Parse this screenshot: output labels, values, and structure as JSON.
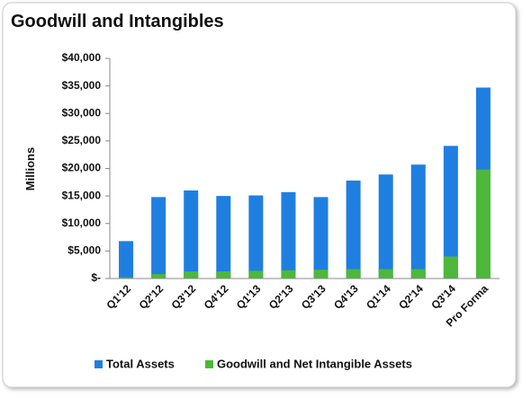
{
  "chart_data": {
    "type": "bar",
    "title": "Goodwill and Intangibles",
    "ylabel": "Millions",
    "categories": [
      "Q1'12",
      "Q2'12",
      "Q3'12",
      "Q4'12",
      "Q1'13",
      "Q2'13",
      "Q3'13",
      "Q4'13",
      "Q1'14",
      "Q2'14",
      "Q3'14",
      "Pro Forma"
    ],
    "series": [
      {
        "name": "Total Assets",
        "color": "#1f7fe0",
        "values": [
          6800,
          14800,
          16000,
          15000,
          15100,
          15700,
          14800,
          17800,
          18900,
          20700,
          24100,
          34700
        ]
      },
      {
        "name": "Goodwill and Net Intangible Assets",
        "color": "#4db83a",
        "values": [
          200,
          800,
          1300,
          1300,
          1400,
          1500,
          1600,
          1700,
          1700,
          1700,
          4000,
          19800
        ]
      }
    ],
    "ylim": [
      0,
      40000
    ],
    "yticks": [
      {
        "value": 0,
        "label": "$-"
      },
      {
        "value": 5000,
        "label": "$5,000"
      },
      {
        "value": 10000,
        "label": "$10,000"
      },
      {
        "value": 15000,
        "label": "$15,000"
      },
      {
        "value": 20000,
        "label": "$20,000"
      },
      {
        "value": 25000,
        "label": "$25,000"
      },
      {
        "value": 30000,
        "label": "$30,000"
      },
      {
        "value": 35000,
        "label": "$35,000"
      },
      {
        "value": 40000,
        "label": "$40,000"
      }
    ],
    "overlap": true,
    "legend": "bottom"
  }
}
